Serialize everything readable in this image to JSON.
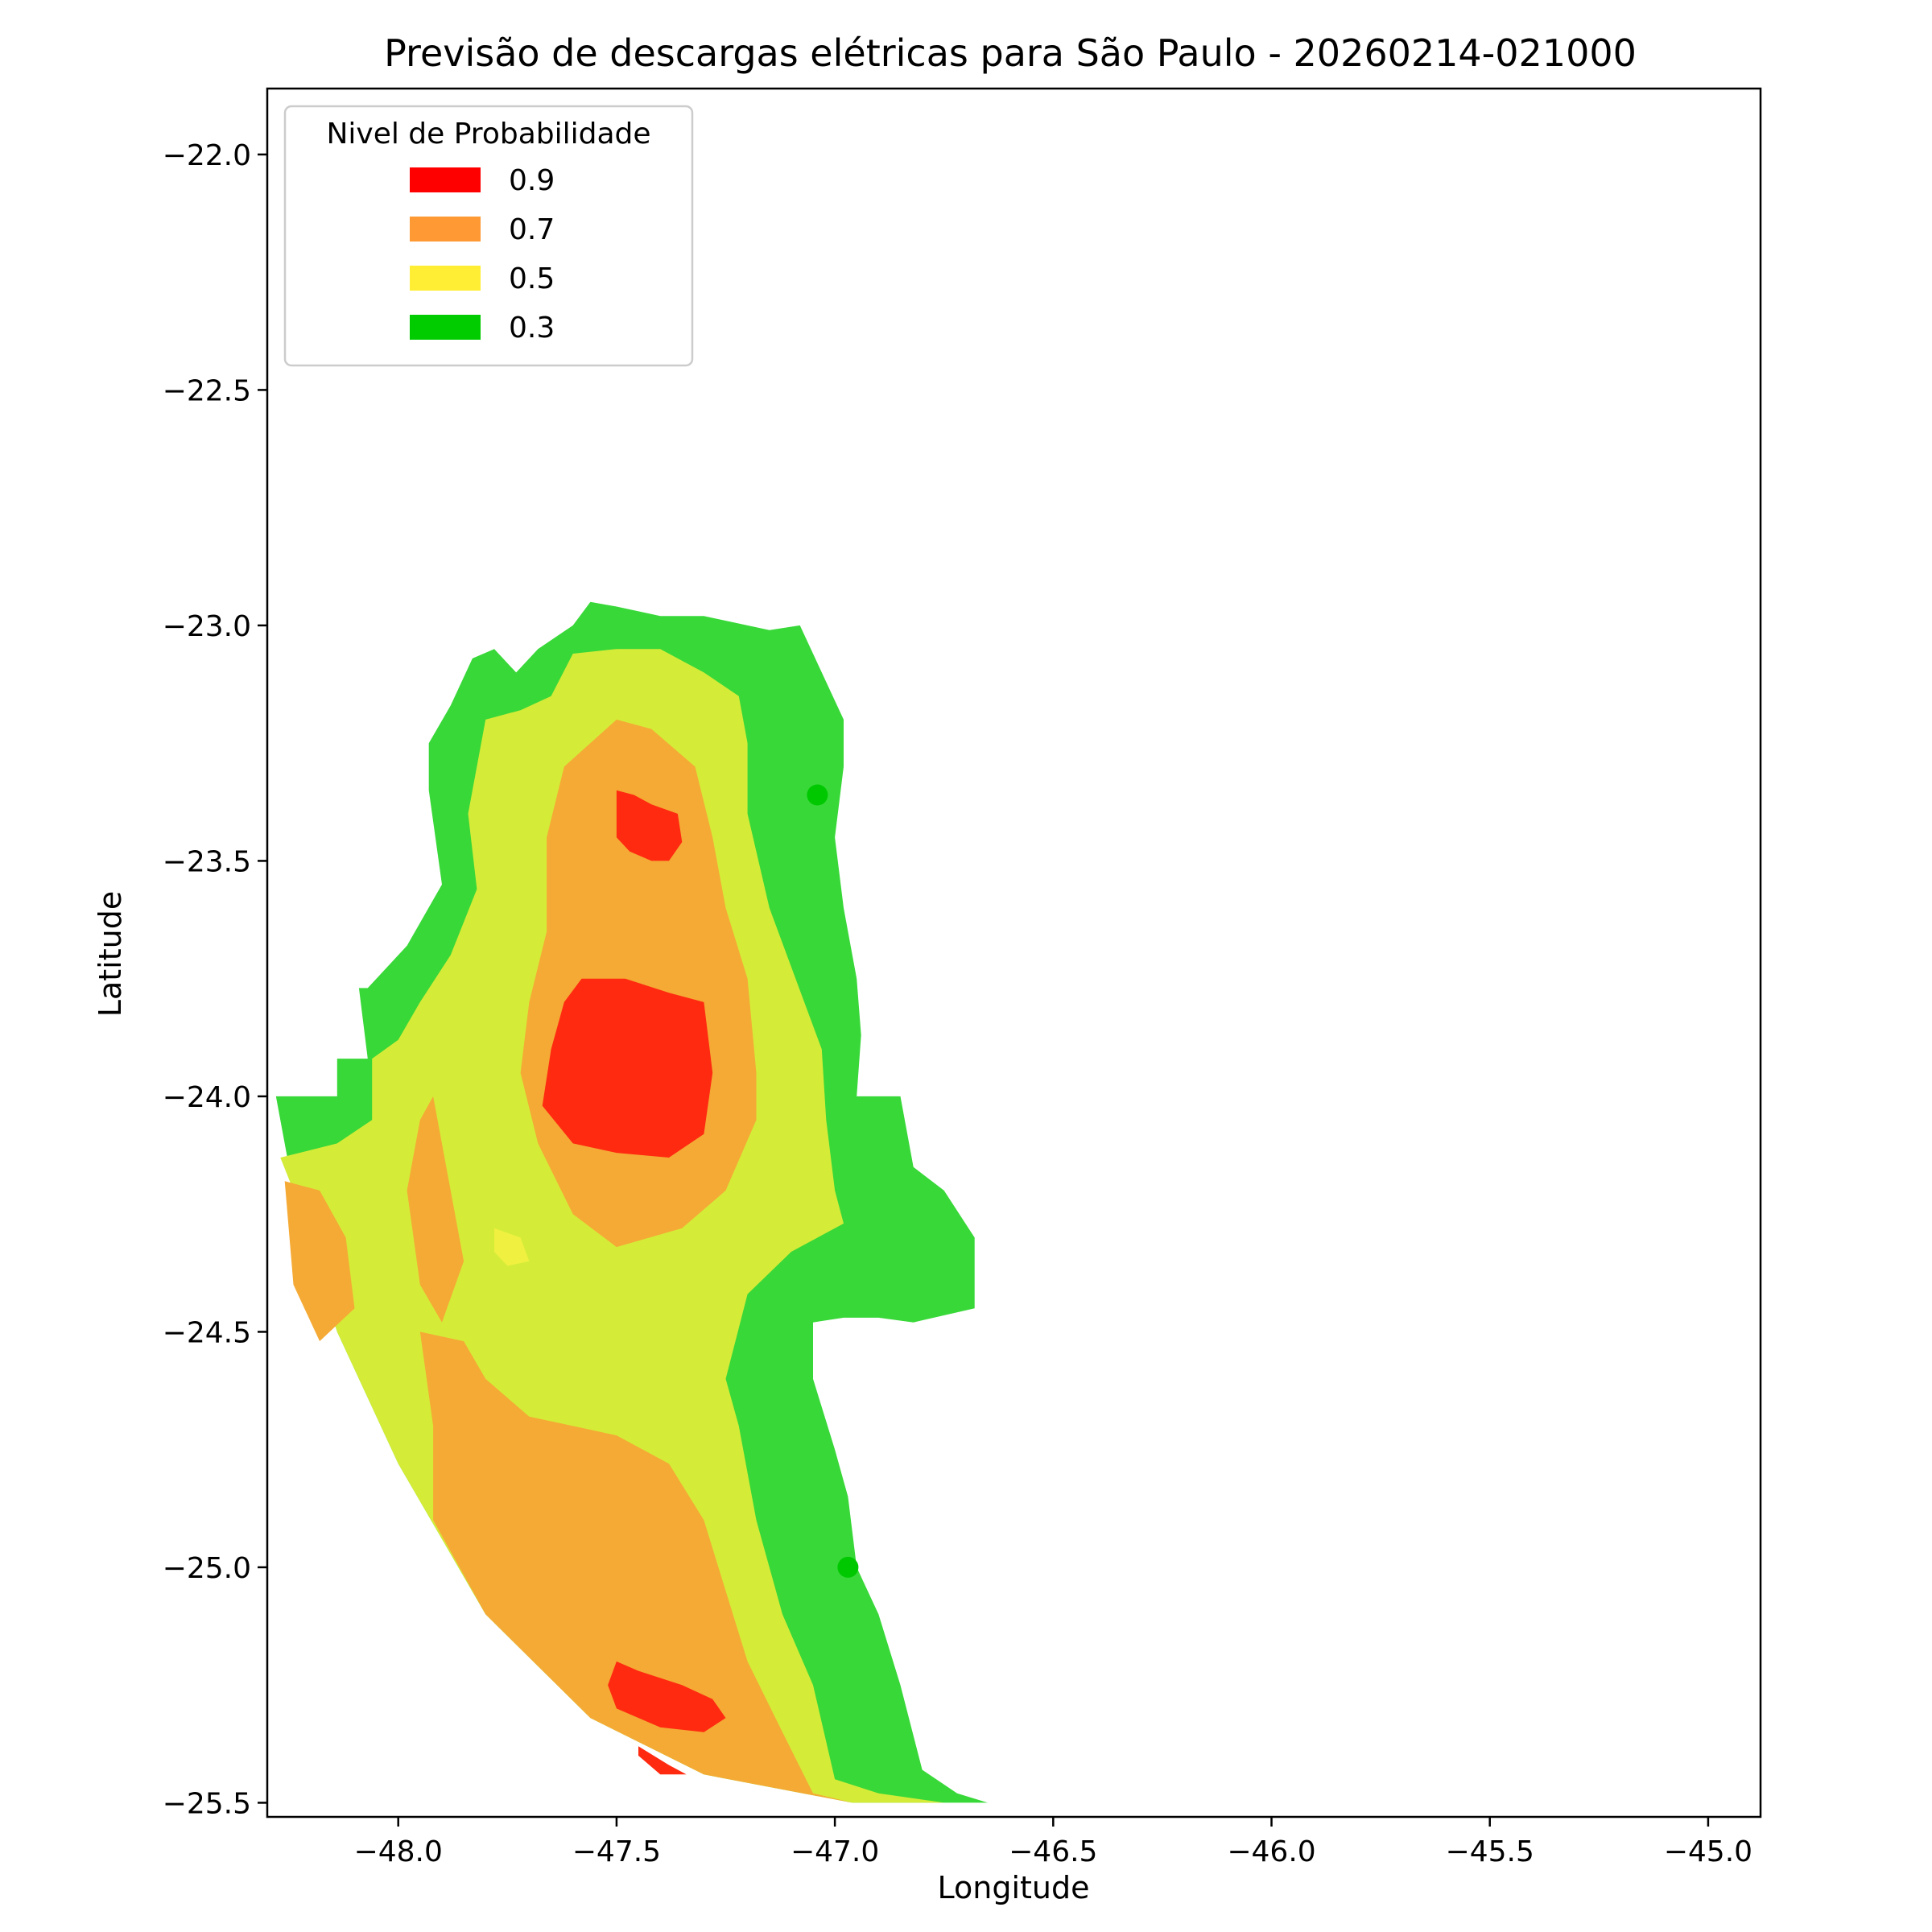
{
  "chart_data": {
    "type": "heatmap",
    "title": "Previsão de descargas elétricas para São Paulo - 20260214-021000",
    "xlabel": "Longitude",
    "ylabel": "Latitude",
    "xlim": [
      -48.3,
      -44.88
    ],
    "ylim": [
      -25.53,
      -21.86
    ],
    "x_ticks": [
      -48.0,
      -47.5,
      -47.0,
      -46.5,
      -46.0,
      -45.5,
      -45.0
    ],
    "x_tick_labels": [
      "−48.0",
      "−47.5",
      "−47.0",
      "−46.5",
      "−46.0",
      "−45.5",
      "−45.0"
    ],
    "y_ticks": [
      -22.0,
      -22.5,
      -23.0,
      -23.5,
      -24.0,
      -24.5,
      -25.0,
      -25.5
    ],
    "y_tick_labels": [
      "−22.0",
      "−22.5",
      "−23.0",
      "−23.5",
      "−24.0",
      "−24.5",
      "−25.0",
      "−25.5"
    ],
    "grid": false,
    "legend": {
      "title": "Nivel de Probabilidade",
      "placement": "top-left",
      "entries": [
        {
          "label": "0.9",
          "color": "#ff0000"
        },
        {
          "label": "0.7",
          "color": "#ff9933"
        },
        {
          "label": "0.5",
          "color": "#ffee33"
        },
        {
          "label": "0.3",
          "color": "#00cc00"
        }
      ]
    },
    "levels": [
      {
        "level": 0.3,
        "color": "#38d838",
        "polygons": [
          [
            [
              -48.28,
              -24.0
            ],
            [
              -48.14,
              -24.0
            ],
            [
              -48.14,
              -23.92
            ],
            [
              -48.07,
              -23.92
            ],
            [
              -48.09,
              -23.77
            ],
            [
              -48.07,
              -23.77
            ],
            [
              -47.98,
              -23.68
            ],
            [
              -47.9,
              -23.55
            ],
            [
              -47.93,
              -23.35
            ],
            [
              -47.93,
              -23.25
            ],
            [
              -47.88,
              -23.17
            ],
            [
              -47.83,
              -23.07
            ],
            [
              -47.78,
              -23.05
            ],
            [
              -47.73,
              -23.1
            ],
            [
              -47.68,
              -23.05
            ],
            [
              -47.6,
              -23.0
            ],
            [
              -47.56,
              -22.95
            ],
            [
              -47.5,
              -22.96
            ],
            [
              -47.4,
              -22.98
            ],
            [
              -47.3,
              -22.98
            ],
            [
              -47.15,
              -23.01
            ],
            [
              -47.08,
              -23.0
            ],
            [
              -46.98,
              -23.2
            ],
            [
              -46.98,
              -23.3
            ],
            [
              -47.0,
              -23.45
            ],
            [
              -46.98,
              -23.6
            ],
            [
              -46.95,
              -23.75
            ],
            [
              -46.94,
              -23.87
            ],
            [
              -46.95,
              -24.0
            ],
            [
              -46.85,
              -24.0
            ],
            [
              -46.82,
              -24.15
            ],
            [
              -46.75,
              -24.2
            ],
            [
              -46.68,
              -24.3
            ],
            [
              -46.68,
              -24.45
            ],
            [
              -46.82,
              -24.48
            ],
            [
              -46.9,
              -24.47
            ],
            [
              -46.98,
              -24.47
            ],
            [
              -47.05,
              -24.48
            ],
            [
              -47.05,
              -24.6
            ],
            [
              -47.0,
              -24.75
            ],
            [
              -46.97,
              -24.85
            ],
            [
              -46.95,
              -25.0
            ],
            [
              -46.9,
              -25.1
            ],
            [
              -46.85,
              -25.25
            ],
            [
              -46.8,
              -25.43
            ],
            [
              -46.72,
              -25.48
            ],
            [
              -46.65,
              -25.5
            ],
            [
              -46.96,
              -25.5
            ],
            [
              -47.3,
              -25.44
            ],
            [
              -47.56,
              -25.32
            ],
            [
              -47.8,
              -25.1
            ],
            [
              -48.0,
              -24.78
            ],
            [
              -48.14,
              -24.5
            ],
            [
              -48.24,
              -24.2
            ],
            [
              -48.28,
              -24.0
            ]
          ]
        ]
      },
      {
        "level": 0.5,
        "color": "#d4ec38",
        "polygons": [
          [
            [
              -48.27,
              -24.13
            ],
            [
              -48.14,
              -24.1
            ],
            [
              -48.06,
              -24.05
            ],
            [
              -48.06,
              -23.92
            ],
            [
              -48.0,
              -23.88
            ],
            [
              -47.95,
              -23.8
            ],
            [
              -47.88,
              -23.7
            ],
            [
              -47.82,
              -23.56
            ],
            [
              -47.84,
              -23.4
            ],
            [
              -47.8,
              -23.2
            ],
            [
              -47.72,
              -23.18
            ],
            [
              -47.65,
              -23.15
            ],
            [
              -47.6,
              -23.06
            ],
            [
              -47.5,
              -23.05
            ],
            [
              -47.4,
              -23.05
            ],
            [
              -47.3,
              -23.1
            ],
            [
              -47.22,
              -23.15
            ],
            [
              -47.2,
              -23.25
            ],
            [
              -47.2,
              -23.4
            ],
            [
              -47.15,
              -23.6
            ],
            [
              -47.07,
              -23.8
            ],
            [
              -47.03,
              -23.9
            ],
            [
              -47.02,
              -24.05
            ],
            [
              -47.0,
              -24.2
            ],
            [
              -46.98,
              -24.27
            ],
            [
              -47.1,
              -24.33
            ],
            [
              -47.2,
              -24.42
            ],
            [
              -47.25,
              -24.6
            ],
            [
              -47.22,
              -24.7
            ],
            [
              -47.18,
              -24.9
            ],
            [
              -47.12,
              -25.1
            ],
            [
              -47.05,
              -25.25
            ],
            [
              -47.0,
              -25.45
            ],
            [
              -46.9,
              -25.48
            ],
            [
              -46.75,
              -25.5
            ],
            [
              -46.96,
              -25.5
            ],
            [
              -47.3,
              -25.44
            ],
            [
              -47.56,
              -25.32
            ],
            [
              -47.8,
              -25.1
            ],
            [
              -48.0,
              -24.78
            ],
            [
              -48.14,
              -24.5
            ],
            [
              -48.24,
              -24.2
            ],
            [
              -48.27,
              -24.13
            ]
          ]
        ]
      },
      {
        "level": 0.5,
        "color": "#f0f040",
        "polygons": [
          [
            [
              -47.78,
              -24.28
            ],
            [
              -47.72,
              -24.3
            ],
            [
              -47.7,
              -24.35
            ],
            [
              -47.75,
              -24.36
            ],
            [
              -47.78,
              -24.33
            ],
            [
              -47.78,
              -24.28
            ]
          ]
        ]
      },
      {
        "level": 0.7,
        "color": "#f5aa35",
        "polygons": [
          [
            [
              -47.62,
              -23.3
            ],
            [
              -47.5,
              -23.2
            ],
            [
              -47.42,
              -23.22
            ],
            [
              -47.32,
              -23.3
            ],
            [
              -47.28,
              -23.45
            ],
            [
              -47.25,
              -23.6
            ],
            [
              -47.2,
              -23.75
            ],
            [
              -47.18,
              -23.95
            ],
            [
              -47.18,
              -24.05
            ],
            [
              -47.25,
              -24.2
            ],
            [
              -47.35,
              -24.28
            ],
            [
              -47.5,
              -24.32
            ],
            [
              -47.6,
              -24.25
            ],
            [
              -47.68,
              -24.1
            ],
            [
              -47.72,
              -23.95
            ],
            [
              -47.7,
              -23.8
            ],
            [
              -47.66,
              -23.65
            ],
            [
              -47.66,
              -23.45
            ],
            [
              -47.62,
              -23.3
            ]
          ],
          [
            [
              -48.26,
              -24.18
            ],
            [
              -48.18,
              -24.2
            ],
            [
              -48.12,
              -24.3
            ],
            [
              -48.1,
              -24.45
            ],
            [
              -48.18,
              -24.52
            ],
            [
              -48.24,
              -24.4
            ],
            [
              -48.26,
              -24.18
            ]
          ],
          [
            [
              -47.95,
              -24.5
            ],
            [
              -47.85,
              -24.52
            ],
            [
              -47.8,
              -24.6
            ],
            [
              -47.7,
              -24.68
            ],
            [
              -47.6,
              -24.7
            ],
            [
              -47.5,
              -24.72
            ],
            [
              -47.38,
              -24.78
            ],
            [
              -47.3,
              -24.9
            ],
            [
              -47.25,
              -25.05
            ],
            [
              -47.2,
              -25.2
            ],
            [
              -47.12,
              -25.35
            ],
            [
              -47.05,
              -25.48
            ],
            [
              -46.96,
              -25.5
            ],
            [
              -47.3,
              -25.44
            ],
            [
              -47.56,
              -25.32
            ],
            [
              -47.8,
              -25.1
            ],
            [
              -47.92,
              -24.9
            ],
            [
              -47.92,
              -24.7
            ],
            [
              -47.95,
              -24.5
            ]
          ],
          [
            [
              -47.92,
              -24.0
            ],
            [
              -47.88,
              -24.2
            ],
            [
              -47.85,
              -24.35
            ],
            [
              -47.9,
              -24.48
            ],
            [
              -47.95,
              -24.4
            ],
            [
              -47.98,
              -24.2
            ],
            [
              -47.95,
              -24.05
            ],
            [
              -47.92,
              -24.0
            ]
          ]
        ]
      },
      {
        "level": 0.9,
        "color": "#ff2a10",
        "polygons": [
          [
            [
              -47.5,
              -23.35
            ],
            [
              -47.46,
              -23.36
            ],
            [
              -47.42,
              -23.38
            ],
            [
              -47.36,
              -23.4
            ],
            [
              -47.35,
              -23.46
            ],
            [
              -47.38,
              -23.5
            ],
            [
              -47.42,
              -23.5
            ],
            [
              -47.47,
              -23.48
            ],
            [
              -47.5,
              -23.45
            ],
            [
              -47.5,
              -23.35
            ]
          ],
          [
            [
              -47.58,
              -23.75
            ],
            [
              -47.48,
              -23.75
            ],
            [
              -47.38,
              -23.78
            ],
            [
              -47.3,
              -23.8
            ],
            [
              -47.28,
              -23.95
            ],
            [
              -47.3,
              -24.08
            ],
            [
              -47.38,
              -24.13
            ],
            [
              -47.5,
              -24.12
            ],
            [
              -47.6,
              -24.1
            ],
            [
              -47.67,
              -24.02
            ],
            [
              -47.65,
              -23.9
            ],
            [
              -47.62,
              -23.8
            ],
            [
              -47.58,
              -23.75
            ]
          ],
          [
            [
              -47.5,
              -25.2
            ],
            [
              -47.45,
              -25.22
            ],
            [
              -47.35,
              -25.25
            ],
            [
              -47.28,
              -25.28
            ],
            [
              -47.25,
              -25.32
            ],
            [
              -47.3,
              -25.35
            ],
            [
              -47.4,
              -25.34
            ],
            [
              -47.5,
              -25.3
            ],
            [
              -47.52,
              -25.25
            ],
            [
              -47.5,
              -25.2
            ]
          ],
          [
            [
              -47.45,
              -25.38
            ],
            [
              -47.38,
              -25.42
            ],
            [
              -47.34,
              -25.44
            ],
            [
              -47.4,
              -25.44
            ],
            [
              -47.45,
              -25.4
            ],
            [
              -47.45,
              -25.38
            ]
          ]
        ]
      },
      {
        "level": 0.3,
        "color": "#00c800",
        "points": [
          [
            -47.04,
            -23.36
          ],
          [
            -46.97,
            -25.0
          ]
        ]
      }
    ]
  }
}
